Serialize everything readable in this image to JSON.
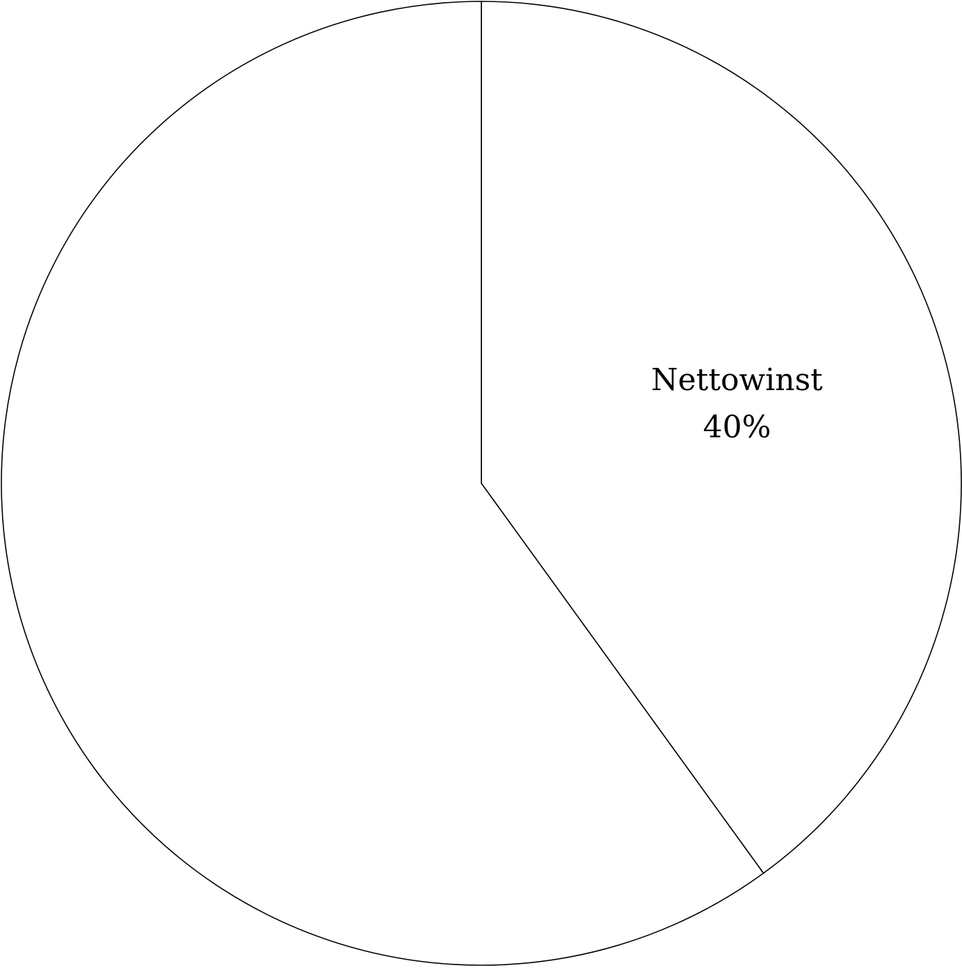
{
  "chart_data": {
    "type": "pie",
    "start_angle_deg": 0,
    "direction": "clockwise",
    "slice_fill": "#ffffff",
    "stroke_color": "#000000",
    "slices": [
      {
        "label": "Nettowinst",
        "value": 40,
        "display": "40%",
        "show_label": true
      },
      {
        "label": "",
        "value": 60,
        "display": "",
        "show_label": false
      }
    ]
  }
}
